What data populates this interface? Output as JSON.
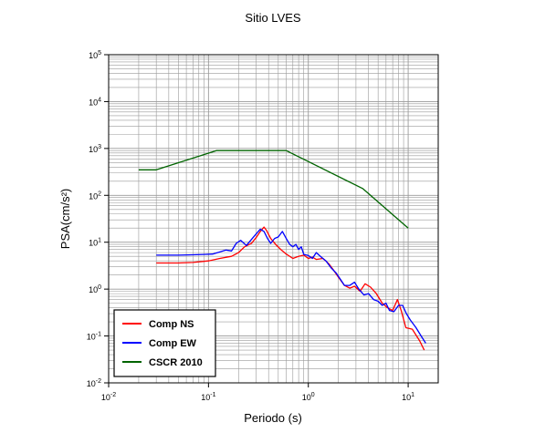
{
  "chart_data": {
    "type": "line",
    "title": "Sitio LVES",
    "xlabel": "Periodo (s)",
    "ylabel": "PSA(cm/s²)",
    "xscale": "log",
    "yscale": "log",
    "xlim": [
      0.01,
      20
    ],
    "ylim": [
      0.01,
      100000
    ],
    "grid": true,
    "legend_position": "bottom-left",
    "x_ticks": [
      {
        "value": 0.01,
        "base": "10",
        "exp": "-2"
      },
      {
        "value": 0.1,
        "base": "10",
        "exp": "-1"
      },
      {
        "value": 1,
        "base": "10",
        "exp": "0"
      },
      {
        "value": 10,
        "base": "10",
        "exp": "1"
      }
    ],
    "y_ticks": [
      {
        "value": 0.01,
        "base": "10",
        "exp": "-2"
      },
      {
        "value": 0.1,
        "base": "10",
        "exp": "-1"
      },
      {
        "value": 1,
        "base": "10",
        "exp": "0"
      },
      {
        "value": 10,
        "base": "10",
        "exp": "1"
      },
      {
        "value": 100,
        "base": "10",
        "exp": "2"
      },
      {
        "value": 1000,
        "base": "10",
        "exp": "3"
      },
      {
        "value": 10000,
        "base": "10",
        "exp": "4"
      },
      {
        "value": 100000,
        "base": "10",
        "exp": "5"
      }
    ],
    "series": [
      {
        "name": "Comp NS",
        "color": "#ff0000",
        "points": [
          [
            0.03,
            3.6
          ],
          [
            0.05,
            3.6
          ],
          [
            0.07,
            3.7
          ],
          [
            0.1,
            4.0
          ],
          [
            0.13,
            4.5
          ],
          [
            0.17,
            5.0
          ],
          [
            0.2,
            6.0
          ],
          [
            0.23,
            8.0
          ],
          [
            0.27,
            9.5
          ],
          [
            0.3,
            12.5
          ],
          [
            0.33,
            17
          ],
          [
            0.36,
            21
          ],
          [
            0.38,
            18
          ],
          [
            0.42,
            12
          ],
          [
            0.47,
            9
          ],
          [
            0.53,
            7
          ],
          [
            0.6,
            5.6
          ],
          [
            0.7,
            4.5
          ],
          [
            0.8,
            5.0
          ],
          [
            0.9,
            5.3
          ],
          [
            1.0,
            4.5
          ],
          [
            1.1,
            4.8
          ],
          [
            1.2,
            4.3
          ],
          [
            1.4,
            4.5
          ],
          [
            1.6,
            3.5
          ],
          [
            1.8,
            2.5
          ],
          [
            2.0,
            1.8
          ],
          [
            2.3,
            1.2
          ],
          [
            2.6,
            1.05
          ],
          [
            2.9,
            1.15
          ],
          [
            3.3,
            0.9
          ],
          [
            3.7,
            1.3
          ],
          [
            4.2,
            1.1
          ],
          [
            4.8,
            0.8
          ],
          [
            5.5,
            0.5
          ],
          [
            6.2,
            0.4
          ],
          [
            7.0,
            0.35
          ],
          [
            7.8,
            0.6
          ],
          [
            8.5,
            0.35
          ],
          [
            9.5,
            0.15
          ],
          [
            11,
            0.14
          ],
          [
            13,
            0.08
          ],
          [
            14.5,
            0.05
          ]
        ]
      },
      {
        "name": "Comp EW",
        "color": "#0000ff",
        "points": [
          [
            0.03,
            5.3
          ],
          [
            0.05,
            5.3
          ],
          [
            0.07,
            5.4
          ],
          [
            0.09,
            5.5
          ],
          [
            0.11,
            5.6
          ],
          [
            0.13,
            6.2
          ],
          [
            0.15,
            6.8
          ],
          [
            0.17,
            6.5
          ],
          [
            0.19,
            9.5
          ],
          [
            0.21,
            11
          ],
          [
            0.24,
            8.5
          ],
          [
            0.27,
            11.5
          ],
          [
            0.3,
            15
          ],
          [
            0.33,
            19
          ],
          [
            0.36,
            17
          ],
          [
            0.39,
            12
          ],
          [
            0.42,
            9.5
          ],
          [
            0.46,
            12
          ],
          [
            0.5,
            13
          ],
          [
            0.55,
            17
          ],
          [
            0.6,
            12
          ],
          [
            0.65,
            9
          ],
          [
            0.7,
            8
          ],
          [
            0.75,
            9
          ],
          [
            0.8,
            7
          ],
          [
            0.85,
            8
          ],
          [
            0.9,
            5.5
          ],
          [
            1.0,
            5.2
          ],
          [
            1.1,
            4.5
          ],
          [
            1.2,
            6.0
          ],
          [
            1.35,
            4.8
          ],
          [
            1.5,
            4.0
          ],
          [
            1.7,
            2.8
          ],
          [
            1.9,
            2.2
          ],
          [
            2.1,
            1.6
          ],
          [
            2.3,
            1.2
          ],
          [
            2.6,
            1.2
          ],
          [
            2.9,
            1.4
          ],
          [
            3.2,
            1.0
          ],
          [
            3.6,
            0.75
          ],
          [
            4.0,
            0.8
          ],
          [
            4.5,
            0.6
          ],
          [
            5.0,
            0.55
          ],
          [
            5.5,
            0.45
          ],
          [
            6.0,
            0.5
          ],
          [
            6.5,
            0.35
          ],
          [
            7.2,
            0.33
          ],
          [
            8.0,
            0.45
          ],
          [
            8.8,
            0.45
          ],
          [
            9.6,
            0.3
          ],
          [
            10.5,
            0.22
          ],
          [
            12,
            0.15
          ],
          [
            13.5,
            0.1
          ],
          [
            15,
            0.07
          ]
        ]
      },
      {
        "name": "CSCR 2010",
        "color": "#006400",
        "points": [
          [
            0.02,
            350
          ],
          [
            0.03,
            350
          ],
          [
            0.12,
            900
          ],
          [
            0.6,
            900
          ],
          [
            3.5,
            140
          ],
          [
            10,
            20
          ]
        ]
      }
    ]
  }
}
